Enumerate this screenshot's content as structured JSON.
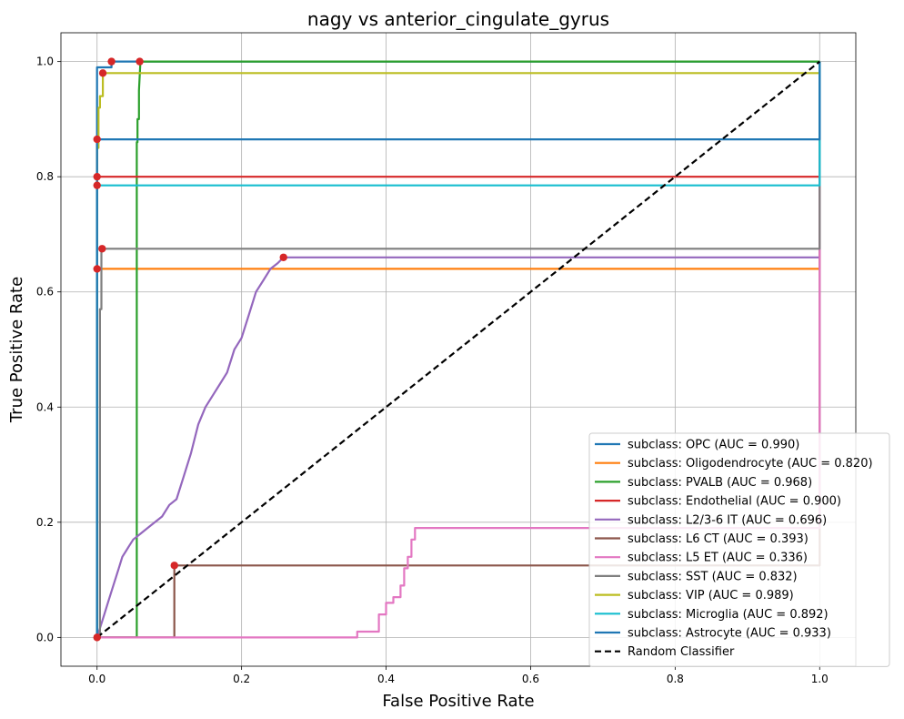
{
  "chart_data": {
    "type": "line",
    "title": "nagy vs anterior_cingulate_gyrus",
    "xlabel": "False Positive Rate",
    "ylabel": "True Positive Rate",
    "xlim": [
      -0.05,
      1.05
    ],
    "ylim": [
      -0.05,
      1.05
    ],
    "xticks": [
      "0.0",
      "0.2",
      "0.4",
      "0.6",
      "0.8",
      "1.0"
    ],
    "yticks": [
      "0.0",
      "0.2",
      "0.4",
      "0.6",
      "0.8",
      "1.0"
    ],
    "grid": true,
    "legend_position": "lower right",
    "series": [
      {
        "name": "subclass: OPC (AUC = 0.990)",
        "color": "#1f77b4",
        "x": [
          0,
          0,
          0.02,
          0.02,
          1,
          1
        ],
        "y": [
          0,
          0.99,
          0.99,
          1.0,
          1.0,
          1.0
        ],
        "marker": [
          0.02,
          1.0
        ]
      },
      {
        "name": "subclass: Oligodendrocyte (AUC = 0.820)",
        "color": "#ff7f0e",
        "x": [
          0,
          0,
          1,
          1
        ],
        "y": [
          0,
          0.64,
          0.64,
          1.0
        ],
        "marker": [
          0.0,
          0.64
        ]
      },
      {
        "name": "subclass: PVALB (AUC = 0.968)",
        "color": "#2ca02c",
        "x": [
          0,
          0.055,
          0.055,
          0.056,
          0.056,
          0.058,
          0.058,
          0.06,
          1,
          1
        ],
        "y": [
          0,
          0,
          0.86,
          0.86,
          0.9,
          0.9,
          0.95,
          1.0,
          1.0,
          1.0
        ],
        "marker": [
          0.059,
          1.0
        ]
      },
      {
        "name": "subclass: Endothelial (AUC = 0.900)",
        "color": "#d62728",
        "x": [
          0,
          0,
          1,
          1
        ],
        "y": [
          0,
          0.8,
          0.8,
          1.0
        ],
        "marker": [
          0.0,
          0.8
        ]
      },
      {
        "name": "subclass: L2/3-6 IT (AUC = 0.696)",
        "color": "#9467bd",
        "x": [
          0,
          0.005,
          0.01,
          0.015,
          0.02,
          0.025,
          0.03,
          0.035,
          0.04,
          0.045,
          0.05,
          0.06,
          0.07,
          0.08,
          0.09,
          0.1,
          0.11,
          0.12,
          0.13,
          0.14,
          0.15,
          0.16,
          0.17,
          0.18,
          0.19,
          0.2,
          0.21,
          0.22,
          0.23,
          0.24,
          0.25,
          0.258,
          1,
          1
        ],
        "y": [
          0,
          0.02,
          0.04,
          0.06,
          0.08,
          0.1,
          0.12,
          0.14,
          0.15,
          0.16,
          0.17,
          0.18,
          0.19,
          0.2,
          0.21,
          0.23,
          0.24,
          0.28,
          0.32,
          0.37,
          0.4,
          0.42,
          0.44,
          0.46,
          0.5,
          0.52,
          0.56,
          0.6,
          0.62,
          0.64,
          0.65,
          0.66,
          0.66,
          1.0
        ],
        "marker": [
          0.258,
          0.66
        ]
      },
      {
        "name": "subclass: L6 CT (AUC = 0.393)",
        "color": "#8c564b",
        "x": [
          0,
          0.107,
          0.107,
          1,
          1
        ],
        "y": [
          0,
          0,
          0.125,
          0.125,
          1.0
        ],
        "marker": [
          0.107,
          0.125
        ]
      },
      {
        "name": "subclass: L5 ET (AUC = 0.336)",
        "color": "#e377c2",
        "x": [
          0,
          0.36,
          0.36,
          0.39,
          0.39,
          0.4,
          0.4,
          0.41,
          0.41,
          0.42,
          0.42,
          0.425,
          0.425,
          0.43,
          0.43,
          0.435,
          0.435,
          0.44,
          0.44,
          1,
          1
        ],
        "y": [
          0,
          0,
          0.01,
          0.01,
          0.04,
          0.04,
          0.06,
          0.06,
          0.07,
          0.07,
          0.09,
          0.09,
          0.12,
          0.12,
          0.14,
          0.14,
          0.17,
          0.17,
          0.19,
          0.19,
          1.0
        ],
        "marker": [
          0.0,
          0.0
        ]
      },
      {
        "name": "subclass: SST (AUC = 0.832)",
        "color": "#7f7f7f",
        "x": [
          0,
          0.004,
          0.004,
          0.006,
          0.006,
          1,
          1
        ],
        "y": [
          0,
          0,
          0.57,
          0.57,
          0.675,
          0.675,
          1.0
        ],
        "marker": [
          0.007,
          0.675
        ]
      },
      {
        "name": "subclass: VIP (AUC = 0.989)",
        "color": "#bcbd22",
        "x": [
          0,
          0,
          0.002,
          0.002,
          0.004,
          0.004,
          0.008,
          0.008,
          1,
          1
        ],
        "y": [
          0,
          0.85,
          0.85,
          0.92,
          0.92,
          0.94,
          0.94,
          0.98,
          0.98,
          1.0
        ],
        "marker": [
          0.008,
          0.98
        ]
      },
      {
        "name": "subclass: Microglia (AUC = 0.892)",
        "color": "#17becf",
        "x": [
          0,
          0,
          1,
          1
        ],
        "y": [
          0,
          0.785,
          0.785,
          1.0
        ],
        "marker": [
          0.0,
          0.785
        ]
      },
      {
        "name": "subclass: Astrocyte (AUC = 0.933)",
        "color": "#1f77b4",
        "x": [
          0,
          0,
          1,
          1
        ],
        "y": [
          0,
          0.865,
          0.865,
          1.0
        ],
        "marker": [
          0.0,
          0.865
        ]
      },
      {
        "name": "Random Classifier",
        "color": "#000000",
        "dashed": true,
        "x": [
          0,
          1
        ],
        "y": [
          0,
          1
        ]
      }
    ]
  }
}
